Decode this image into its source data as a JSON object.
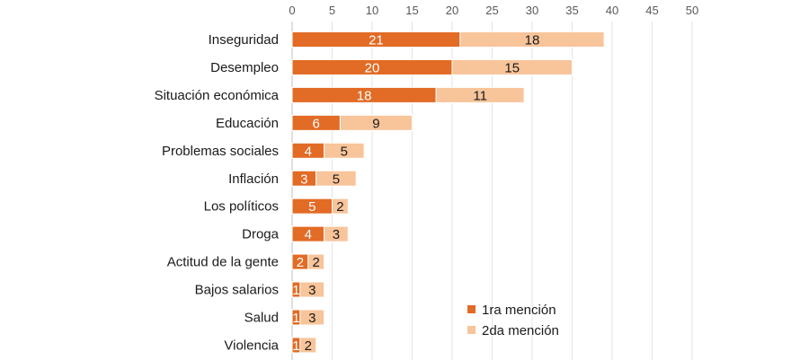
{
  "chart_data": {
    "type": "bar",
    "orientation": "horizontal",
    "stacked": true,
    "categories": [
      "Inseguridad",
      "Desempleo",
      "Situación económica",
      "Educación",
      "Problemas sociales",
      "Inflación",
      "Los políticos",
      "Droga",
      "Actitud de la gente",
      "Bajos salarios",
      "Salud",
      "Violencia"
    ],
    "series": [
      {
        "name": "1ra mención",
        "values": [
          21,
          20,
          18,
          6,
          4,
          3,
          5,
          4,
          2,
          1,
          1,
          1
        ],
        "color": "#e26b25"
      },
      {
        "name": "2da mención",
        "values": [
          18,
          15,
          11,
          9,
          5,
          5,
          2,
          3,
          2,
          3,
          3,
          2
        ],
        "color": "#f8c49a"
      }
    ],
    "xlim": [
      0,
      50
    ],
    "xticks": [
      0,
      5,
      10,
      15,
      20,
      25,
      30,
      35,
      40,
      45,
      50
    ],
    "axis_position": "top",
    "grid": true,
    "legend_position": "bottom-right",
    "title": "",
    "xlabel": "",
    "ylabel": ""
  }
}
